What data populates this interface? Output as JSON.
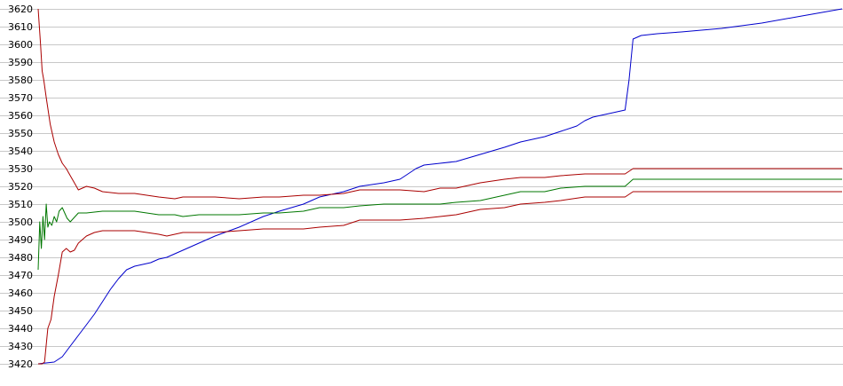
{
  "chart_data": {
    "type": "line",
    "title": "",
    "xlabel": "",
    "ylabel": "",
    "grid": true,
    "legend": "none",
    "ylim": [
      3420,
      3620
    ],
    "xlim": [
      0,
      100
    ],
    "yticks": [
      "3620",
      "3610",
      "3600",
      "3590",
      "3580",
      "3570",
      "3560",
      "3550",
      "3540",
      "3530",
      "3520",
      "3510",
      "3500",
      "3490",
      "3480",
      "3470",
      "3460",
      "3450",
      "3440",
      "3430",
      "3420"
    ],
    "series": [
      {
        "color": "#0000cc",
        "x": [
          0,
          2,
          3,
          4,
          5,
          6,
          7,
          8,
          9,
          10,
          11,
          12,
          13,
          14,
          15,
          16,
          17,
          18,
          20,
          22,
          25,
          28,
          30,
          33,
          35,
          38,
          40,
          43,
          45,
          46,
          47,
          48,
          50,
          52,
          55,
          58,
          60,
          63,
          65,
          67,
          68,
          69,
          70,
          71,
          72,
          73,
          73.5,
          74,
          75,
          77,
          80,
          85,
          90,
          95,
          100
        ],
        "values": [
          3420,
          3421,
          3424,
          3430,
          3436,
          3442,
          3448,
          3455,
          3462,
          3468,
          3473,
          3475,
          3476,
          3477,
          3479,
          3480,
          3482,
          3484,
          3488,
          3492,
          3497,
          3503,
          3506,
          3510,
          3514,
          3517,
          3520,
          3522,
          3524,
          3527,
          3530,
          3532,
          3533,
          3534,
          3538,
          3542,
          3545,
          3548,
          3551,
          3554,
          3557,
          3559,
          3560,
          3561,
          3562,
          3563,
          3580,
          3603,
          3605,
          3606,
          3607,
          3609,
          3612,
          3616,
          3620
        ]
      },
      {
        "color": "#aa0000",
        "x": [
          0,
          0.3,
          0.5,
          0.7,
          1,
          1.5,
          2,
          2.5,
          3,
          3.5,
          4,
          4.5,
          5,
          6,
          7,
          8,
          10,
          12,
          15,
          17,
          18,
          20,
          22,
          25,
          28,
          30,
          33,
          35,
          38,
          40,
          43,
          45,
          48,
          50,
          52,
          55,
          58,
          60,
          63,
          65,
          68,
          70,
          72,
          73,
          74,
          76,
          80,
          85,
          90,
          95,
          100
        ],
        "values": [
          3620,
          3600,
          3585,
          3580,
          3570,
          3555,
          3545,
          3538,
          3533,
          3530,
          3526,
          3522,
          3518,
          3520,
          3519,
          3517,
          3516,
          3516,
          3514,
          3513,
          3514,
          3514,
          3514,
          3513,
          3514,
          3514,
          3515,
          3515,
          3516,
          3518,
          3518,
          3518,
          3517,
          3519,
          3519,
          3522,
          3524,
          3525,
          3525,
          3526,
          3527,
          3527,
          3527,
          3527,
          3530,
          3530,
          3530,
          3530,
          3530,
          3530,
          3530
        ]
      },
      {
        "color": "#007700",
        "x": [
          0,
          0.2,
          0.4,
          0.6,
          0.8,
          1,
          1.2,
          1.4,
          1.7,
          2,
          2.3,
          2.6,
          3,
          3.3,
          3.6,
          4,
          5,
          6,
          8,
          10,
          12,
          15,
          17,
          18,
          20,
          22,
          25,
          28,
          30,
          33,
          35,
          38,
          40,
          43,
          45,
          48,
          50,
          52,
          55,
          58,
          60,
          63,
          65,
          68,
          70,
          72,
          73,
          74,
          76,
          80,
          85,
          90,
          95,
          100
        ],
        "values": [
          3473,
          3500,
          3485,
          3503,
          3490,
          3510,
          3497,
          3500,
          3498,
          3503,
          3500,
          3506,
          3508,
          3505,
          3502,
          3500,
          3505,
          3505,
          3506,
          3506,
          3506,
          3504,
          3504,
          3503,
          3504,
          3504,
          3504,
          3505,
          3505,
          3506,
          3508,
          3508,
          3509,
          3510,
          3510,
          3510,
          3510,
          3511,
          3512,
          3515,
          3517,
          3517,
          3519,
          3520,
          3520,
          3520,
          3520,
          3524,
          3524,
          3524,
          3524,
          3524,
          3524,
          3524
        ]
      },
      {
        "color": "#aa0000",
        "x": [
          0,
          0.5,
          0.8,
          1.2,
          1.6,
          2,
          2.5,
          3,
          3.5,
          4,
          4.5,
          5,
          6,
          7,
          8,
          10,
          12,
          15,
          16,
          17,
          18,
          20,
          22,
          25,
          28,
          30,
          33,
          35,
          38,
          40,
          43,
          45,
          48,
          50,
          52,
          55,
          58,
          60,
          63,
          65,
          68,
          70,
          72,
          73,
          74,
          76,
          80,
          85,
          90,
          95,
          100
        ],
        "values": [
          3420,
          3420,
          3421,
          3440,
          3445,
          3458,
          3470,
          3483,
          3485,
          3483,
          3484,
          3488,
          3492,
          3494,
          3495,
          3495,
          3495,
          3493,
          3492,
          3493,
          3494,
          3494,
          3494,
          3495,
          3496,
          3496,
          3496,
          3497,
          3498,
          3501,
          3501,
          3501,
          3502,
          3503,
          3504,
          3507,
          3508,
          3510,
          3511,
          3512,
          3514,
          3514,
          3514,
          3514,
          3517,
          3517,
          3517,
          3517,
          3517,
          3517,
          3517
        ]
      }
    ]
  }
}
